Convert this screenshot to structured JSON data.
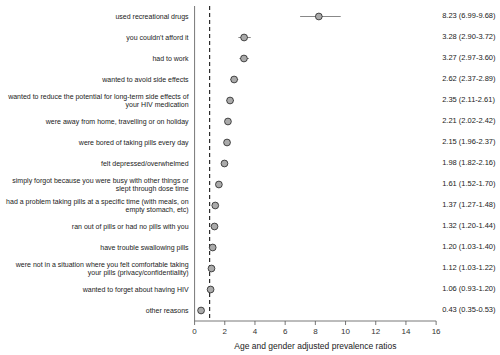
{
  "chart_data": {
    "type": "forest",
    "xlabel": "Age and gender adjusted prevalence ratios",
    "categories": [
      "used recreational drugs",
      "you couldn't afford it",
      "had to work",
      "wanted to avoid side effects",
      "wanted to reduce the potential for long-term side effects of\nyour HIV medication",
      "were away from home, travelling or on holiday",
      "were bored of taking pills every day",
      "felt depressed/overwhelmed",
      "simply forgot because you were busy with other things or\nslept through dose time",
      "had a problem taking pills at a specific time (with meals, on\nempty stomach, etc)",
      "ran out of pills or had no pills with you",
      "have trouble swallowing pills",
      "were not in a situation where you felt comfortable taking\nyour pills (privacy/confidentiality)",
      "wanted to forget about having HIV",
      "other reasons"
    ],
    "values": [
      8.23,
      3.28,
      3.27,
      2.62,
      2.35,
      2.21,
      2.15,
      1.98,
      1.61,
      1.37,
      1.32,
      1.2,
      1.12,
      1.06,
      0.43
    ],
    "ci_low": [
      6.99,
      2.9,
      2.97,
      2.37,
      2.11,
      2.02,
      1.96,
      1.82,
      1.52,
      1.27,
      1.2,
      1.03,
      1.03,
      0.93,
      0.35
    ],
    "ci_high": [
      9.68,
      3.72,
      3.6,
      2.89,
      2.61,
      2.42,
      2.37,
      2.16,
      1.7,
      1.48,
      1.44,
      1.4,
      1.22,
      1.2,
      0.53
    ],
    "value_labels": [
      "8.23 (6.99-9.68)",
      "3.28 (2.90-3.72)",
      "3.27 (2.97-3.60)",
      "2.62 (2.37-2.89)",
      "2.35 (2.11-2.61)",
      "2.21 (2.02-2.42)",
      "2.15 (1.96-2.37)",
      "1.98 (1.82-2.16)",
      "1.61 (1.52-1.70)",
      "1.37 (1.27-1.48)",
      "1.32 (1.20-1.44)",
      "1.20 (1.03-1.40)",
      "1.12 (1.03-1.22)",
      "1.06 (0.93-1.20)",
      "0.43 (0.35-0.53)"
    ],
    "data_labels": true,
    "reference_line": 1.0,
    "color": "#aaaaaa",
    "xlim": [
      0,
      16
    ],
    "xticks": [
      0,
      2,
      4,
      6,
      8,
      10,
      12,
      14,
      16
    ],
    "grid": false
  }
}
